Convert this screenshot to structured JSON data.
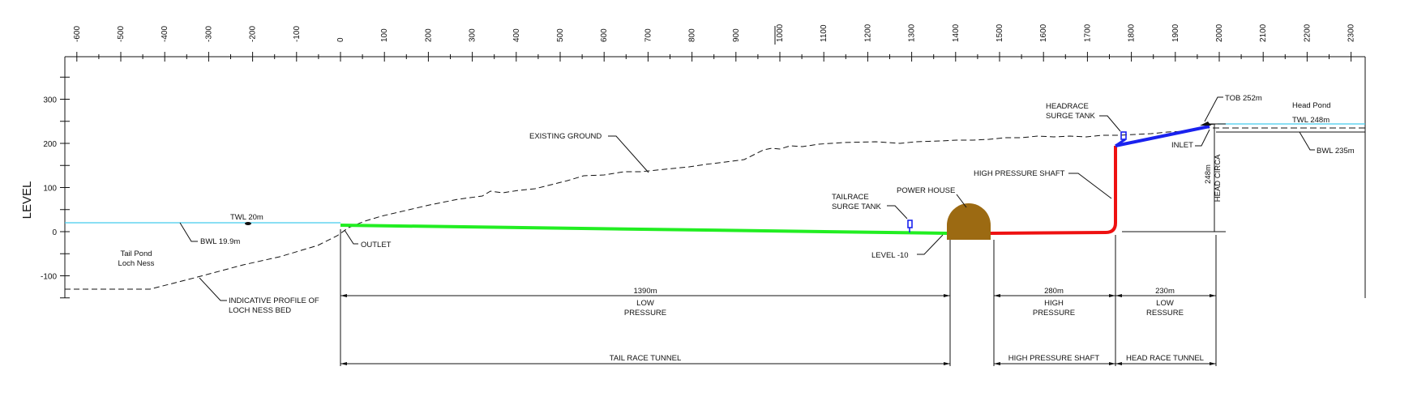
{
  "colors": {
    "tail_race": "#22ee22",
    "high_pressure": "#ee1111",
    "head_race": "#1a22ee",
    "water": "#44ccee",
    "powerhouse": "#9c6a12",
    "surge_tank": "#1a22ee",
    "ink": "#111111"
  },
  "axes": {
    "y_title": "LEVEL",
    "x_ticks": [
      "-600",
      "-500",
      "-400",
      "-300",
      "-200",
      "-100",
      "0",
      "100",
      "200",
      "300",
      "400",
      "500",
      "600",
      "700",
      "800",
      "900",
      "1000",
      "1100",
      "1200",
      "1300",
      "1400",
      "1500",
      "1600",
      "1700",
      "1800",
      "1900",
      "2000",
      "2100",
      "2200",
      "2300"
    ],
    "y_ticks": [
      "300",
      "200",
      "100",
      "0",
      "-100"
    ]
  },
  "labels": {
    "twl_tail": "TWL 20m",
    "bwl_tail": "BWL 19.9m",
    "tail_pond_1": "Tail Pond",
    "tail_pond_2": "Loch Ness",
    "outlet": "OUTLET",
    "existing_ground": "EXISTING GROUND",
    "indicative_1": "INDICATIVE PROFILE OF",
    "indicative_2": "LOCH NESS BED",
    "tailrace_1": "TAILRACE",
    "tailrace_2": "SURGE TANK",
    "power_house": "POWER HOUSE",
    "level_minus10": "LEVEL -10",
    "high_pressure_shaft": "HIGH PRESSURE SHAFT",
    "headrace_1": "HEADRACE",
    "headrace_2": "SURGE TANK",
    "inlet": "INLET",
    "tob": "TOB 252m",
    "head_pond": "Head Pond",
    "twl_head": "TWL 248m",
    "bwl_head": "BWL 235m",
    "head_circa_1": "248m",
    "head_circa_2": "HEAD CIRCA"
  },
  "dimensions": {
    "tail_len": "1390m",
    "tail_p1": "LOW",
    "tail_p2": "PRESSURE",
    "hp_len": "280m",
    "hp_p1": "HIGH",
    "hp_p2": "PRESSURE",
    "head_len": "230m",
    "head_p1": "LOW",
    "head_p2": "RESSURE",
    "tail_name": "TAIL RACE TUNNEL",
    "hp_name": "HIGH PRESSURE SHAFT",
    "head_name": "HEAD RACE TUNNEL"
  }
}
